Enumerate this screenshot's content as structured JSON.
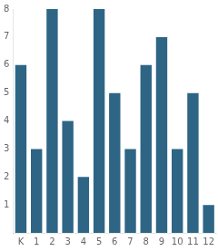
{
  "chart_data": {
    "type": "bar",
    "categories": [
      "K",
      "1",
      "2",
      "3",
      "4",
      "5",
      "6",
      "7",
      "8",
      "9",
      "10",
      "11",
      "12"
    ],
    "values": [
      6,
      3,
      8,
      4,
      2,
      8,
      5,
      3,
      6,
      7,
      3,
      5,
      1
    ],
    "color": "#2e6585",
    "ylim": [
      0,
      8
    ],
    "yticks": [
      1,
      2,
      3,
      4,
      5,
      6,
      7,
      8
    ],
    "grid": false
  }
}
